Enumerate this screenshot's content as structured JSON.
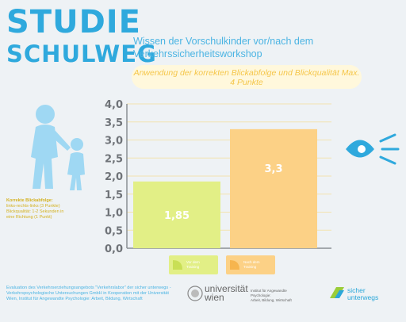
{
  "branding": {
    "title_line1": "STUDIE",
    "title_line2": "SCHULWEG"
  },
  "heading": "Wissen der Vorschulkinder vor/nach dem Verkehrssicherheitsworkshop",
  "subtitle": "Anwendung der korrekten Blickabfolge und Blickqualität Max. 4 Punkte",
  "note": {
    "line1": "Korrekte Blickabfolge:",
    "line2": "links-rechts-links (3 Punkte)",
    "line3": "Blickqualität: 1-2 Sekunden in",
    "line4": "eine Richtung (1 Punkt)"
  },
  "legend": {
    "before_line1": "Vor dem",
    "before_line2": "Training",
    "after_line1": "Nach dem",
    "after_line2": "Training"
  },
  "footer": {
    "line1": "Evaluation des Verkehrserziehungsangebots \"Verkehrslabor\" der sicher unterwegs -",
    "line2": "Verkehrspsychologische Untersuchungen GmbH in Kooperation mit der Universität",
    "line3": "Wien, Institut für Angewandte Psychologie: Arbeit, Bildung, Wirtschaft"
  },
  "logos": {
    "uni_line1": "universität",
    "uni_line2": "wien",
    "inst_line1": "Institut für Angewandte Psychologie:",
    "inst_line2": "Arbeit, Bildung, Wirtschaft",
    "sicher": "sicher",
    "unterwegs": "unterwegs"
  },
  "colors": {
    "accent": "#2fa9dd",
    "before": "#e2ef86",
    "after": "#fcd186",
    "grid": "#f2e3b0"
  },
  "chart_data": {
    "type": "bar",
    "title": "",
    "xlabel": "",
    "ylabel": "",
    "ylim": [
      0,
      4
    ],
    "yticks": [
      "0,0",
      "0,5",
      "1,0",
      "1,5",
      "2,0",
      "2,5",
      "3,0",
      "3,5",
      "4,0"
    ],
    "categories": [
      "Vor dem Training",
      "Nach dem Training"
    ],
    "values": [
      1.85,
      3.3
    ],
    "value_labels": [
      "1,85",
      "3,3"
    ],
    "grid": true,
    "legend_position": "bottom"
  }
}
